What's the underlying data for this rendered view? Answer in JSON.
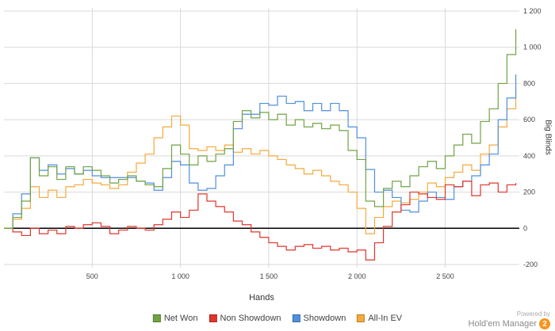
{
  "chart_data": {
    "type": "line",
    "title": "",
    "xlabel": "Hands",
    "ylabel": "Big Blinds",
    "grid": true,
    "legend_position": "bottom",
    "xlim": [
      0,
      2920
    ],
    "ylim": [
      -200,
      1200
    ],
    "x_ticks": [
      500,
      1000,
      1500,
      2000,
      2500
    ],
    "y_ticks": [
      -200,
      0,
      200,
      400,
      600,
      800,
      1000,
      1200
    ],
    "x_start": 0,
    "x_step": 50,
    "series": [
      {
        "name": "Net Won",
        "color": "#70a343",
        "values": [
          0,
          60,
          150,
          390,
          290,
          340,
          270,
          340,
          300,
          340,
          320,
          290,
          250,
          270,
          290,
          260,
          240,
          230,
          330,
          460,
          410,
          350,
          400,
          370,
          410,
          440,
          590,
          650,
          610,
          640,
          600,
          630,
          570,
          600,
          560,
          580,
          550,
          570,
          540,
          430,
          380,
          150,
          120,
          220,
          260,
          230,
          290,
          340,
          370,
          330,
          400,
          460,
          520,
          470,
          590,
          660,
          800,
          960,
          1100
        ]
      },
      {
        "name": "Non Showdown",
        "color": "#e0352b",
        "values": [
          0,
          -20,
          -40,
          0,
          -30,
          -10,
          -30,
          10,
          0,
          20,
          30,
          10,
          -30,
          -10,
          10,
          0,
          -10,
          20,
          50,
          90,
          60,
          100,
          190,
          150,
          120,
          90,
          40,
          20,
          -20,
          -50,
          -80,
          -100,
          -120,
          -100,
          -90,
          -110,
          -100,
          -120,
          -110,
          -130,
          -120,
          -175,
          -80,
          10,
          90,
          130,
          200,
          190,
          170,
          160,
          240,
          230,
          260,
          180,
          240,
          250,
          200,
          240,
          250
        ]
      },
      {
        "name": "Showdown",
        "color": "#4f8fde",
        "values": [
          0,
          80,
          190,
          390,
          320,
          350,
          300,
          330,
          300,
          320,
          290,
          280,
          280,
          280,
          280,
          260,
          250,
          210,
          280,
          370,
          350,
          250,
          210,
          220,
          290,
          350,
          550,
          630,
          630,
          690,
          680,
          730,
          690,
          700,
          650,
          690,
          650,
          690,
          650,
          560,
          500,
          325,
          200,
          210,
          170,
          100,
          90,
          150,
          200,
          170,
          160,
          230,
          260,
          290,
          350,
          410,
          600,
          720,
          850
        ]
      },
      {
        "name": "All-In EV",
        "color": "#f5a93c",
        "values": [
          0,
          50,
          110,
          230,
          170,
          210,
          170,
          230,
          240,
          270,
          250,
          240,
          220,
          240,
          310,
          360,
          410,
          500,
          560,
          620,
          570,
          440,
          430,
          450,
          430,
          460,
          420,
          440,
          410,
          430,
          400,
          380,
          350,
          330,
          300,
          320,
          290,
          260,
          240,
          200,
          110,
          -30,
          60,
          120,
          150,
          140,
          160,
          200,
          250,
          230,
          280,
          310,
          350,
          320,
          410,
          460,
          560,
          660,
          780
        ]
      }
    ]
  },
  "branding": {
    "powered_by": "Powered by",
    "app_name": "Hold'em Manager",
    "app_version_badge": "2"
  }
}
